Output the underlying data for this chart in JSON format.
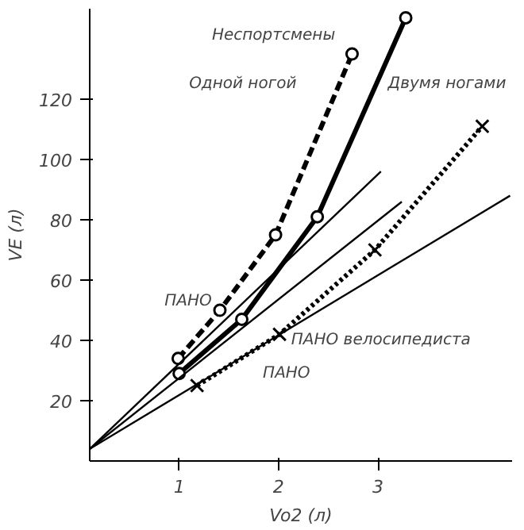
{
  "chart_data": {
    "type": "line",
    "xlabel": "Vo2 (л)",
    "ylabel": "VE (л)",
    "xlim": [
      0.1,
      4.35
    ],
    "ylim": [
      0,
      150
    ],
    "xticks": [
      1,
      2,
      3
    ],
    "yticks": [
      20,
      40,
      60,
      80,
      100,
      120
    ],
    "grid": false,
    "series": [
      {
        "color": "#000000",
        "line_style": "dashed",
        "marker": "circle",
        "x": [
          0.99,
          1.41,
          1.97,
          2.74
        ],
        "values": [
          34,
          50,
          75,
          135
        ]
      },
      {
        "color": "#000000",
        "line_style": "solid",
        "marker": "circle",
        "x": [
          1.0,
          1.63,
          2.39,
          3.28
        ],
        "values": [
          29,
          47,
          81,
          147
        ]
      },
      {
        "color": "#000000",
        "line_style": "dotted",
        "marker": "cross",
        "x": [
          1.18,
          2.01,
          2.97,
          4.05
        ],
        "values": [
          25,
          42,
          70,
          111
        ]
      },
      {
        "color": "#000000",
        "line_style": "solid",
        "marker": "none",
        "x": [
          0.1,
          3.03
        ],
        "values": [
          4,
          96
        ]
      },
      {
        "color": "#000000",
        "line_style": "solid",
        "marker": "none",
        "x": [
          0.1,
          3.24
        ],
        "values": [
          4,
          86
        ]
      },
      {
        "color": "#000000",
        "line_style": "solid",
        "marker": "none",
        "x": [
          0.1,
          4.33
        ],
        "values": [
          4,
          88
        ]
      }
    ],
    "annotations": [
      "Неспортсмены",
      "Одной ногой",
      "Двумя ногами",
      "ПАНО",
      "ПАНО",
      "ПАНО велосипедиста"
    ]
  }
}
